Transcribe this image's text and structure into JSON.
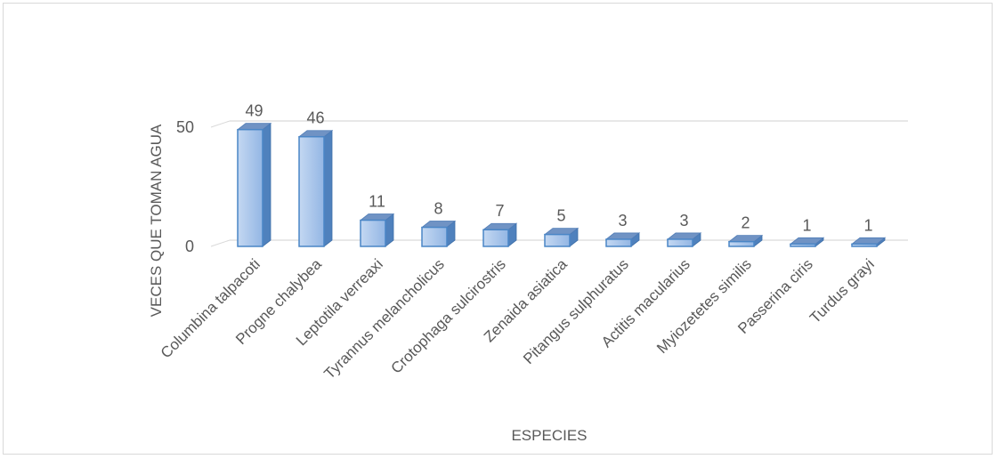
{
  "chart_data": {
    "type": "bar",
    "style": "3d-clustered-column",
    "categories": [
      "Columbina talpacoti",
      "Progne chalybea",
      "Leptotila verreaxi",
      "Tyrannus melancholicus",
      "Crotophaga sulcirostris",
      "Zenaida asiatica",
      "Pitangus sulphuratus",
      "Actitis macularius",
      "Myiozetetes similis",
      "Passerina ciris",
      "Turdus grayi"
    ],
    "values": [
      49,
      46,
      11,
      8,
      7,
      5,
      3,
      3,
      2,
      1,
      1
    ],
    "xlabel": "ESPECIES",
    "ylabel": "VECES QUE TOMAN AGUA",
    "yticks": [
      0,
      50
    ],
    "ylim": [
      0,
      50
    ],
    "grid": true,
    "legend": "none",
    "colors": {
      "bar_front": "#a8c6ec",
      "bar_front_edge": "#4a86c6",
      "bar_side": "#4f81bd",
      "bar_top": "#7093c4",
      "gridline": "#d9d9d9",
      "text": "#595959"
    }
  }
}
